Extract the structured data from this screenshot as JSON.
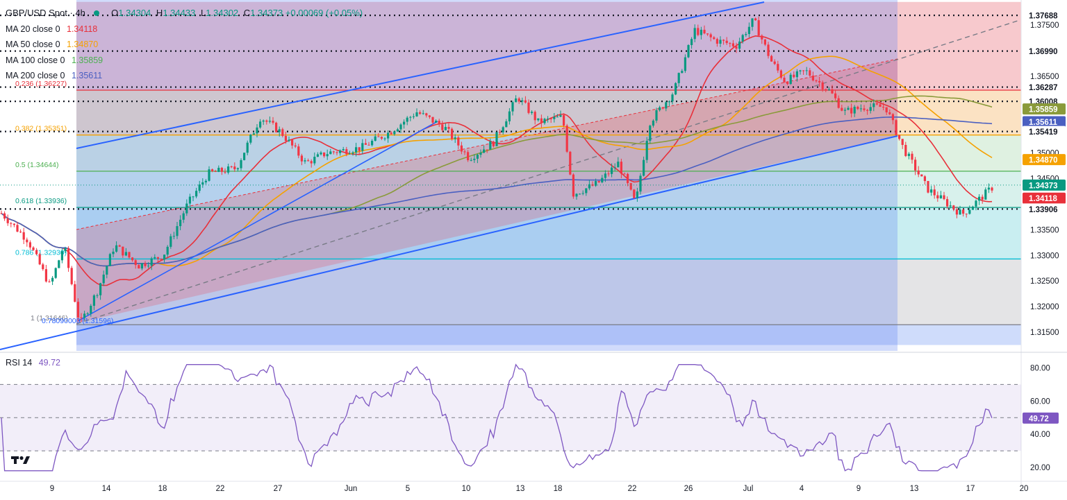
{
  "header": {
    "symbol": "GBP/USD Spot",
    "timeframe": "4h",
    "open_label": "O",
    "open": "1.34304",
    "high_label": "H",
    "high": "1.34433",
    "low_label": "L",
    "low": "1.34302",
    "close_label": "C",
    "close": "1.34373",
    "change": "+0.00069 (+0.05%)"
  },
  "indicators": [
    {
      "label": "MA 20 close 0",
      "value": "1.34118",
      "color": "#e8303a"
    },
    {
      "label": "MA 50 close 0",
      "value": "1.34870",
      "color": "#f5a100"
    },
    {
      "label": "MA 100 close 0",
      "value": "1.35859",
      "color": "#8a9a3a"
    },
    {
      "label": "MA 200 close 0",
      "value": "1.35611",
      "color": "#4a5fc1"
    }
  ],
  "rsi": {
    "label": "RSI 14",
    "value": "49.72",
    "color": "#7e57c2",
    "levels": [
      70,
      50,
      30
    ]
  },
  "fib_levels": [
    {
      "ratio": "0.236",
      "label": "0.236 (1.36227)",
      "price": 1.36227,
      "color": "#e8303a"
    },
    {
      "ratio": "0.382",
      "label": "0.382 (1.35351)",
      "price": 1.35351,
      "color": "#f5a100"
    },
    {
      "ratio": "0.5",
      "label": "0.5 (1.34644)",
      "price": 1.34644,
      "color": "#4caf50"
    },
    {
      "ratio": "0.618",
      "label": "0.618 (1.33936)",
      "price": 1.33936,
      "color": "#089981"
    },
    {
      "ratio": "0.786",
      "label": "0.786 (1.32930)",
      "price": 1.3293,
      "color": "#00bcd4"
    },
    {
      "ratio": "1",
      "label": "1 (1.31646)",
      "price": 1.31646,
      "color": "#787b86"
    }
  ],
  "annotation_text": "0.78090000 (1.31596)",
  "chart_data": {
    "type": "candlestick",
    "instrument": "GBP/USD Spot",
    "timeframe": "4h",
    "y_range": [
      1.3125,
      1.3795
    ],
    "price_ticks": [
      "1.37500",
      "1.37000",
      "1.36500",
      "1.36000",
      "1.35500",
      "1.35000",
      "1.34500",
      "1.34000",
      "1.33500",
      "1.33000",
      "1.32500",
      "1.32000",
      "1.31500"
    ],
    "x_ticks": [
      "9",
      "14",
      "18",
      "22",
      "27",
      "Jun",
      "5",
      "10",
      "13",
      "18",
      "22",
      "26",
      "Jul",
      "4",
      "9",
      "13",
      "17",
      "20"
    ],
    "horizontal_levels": [
      {
        "label": "1.37688",
        "price": 1.37688
      },
      {
        "label": "1.36990",
        "price": 1.3699
      },
      {
        "label": "1.36287",
        "price": 1.36287
      },
      {
        "label": "1.36008",
        "price": 1.36008
      },
      {
        "label": "1.35419",
        "price": 1.35419
      },
      {
        "label": "1.33906",
        "price": 1.33906
      }
    ],
    "price_badges": [
      {
        "label": "1.37688",
        "price": 1.37688,
        "bg": "#ffffff",
        "fg": "#131722"
      },
      {
        "label": "1.36990",
        "price": 1.3699,
        "bg": "#ffffff",
        "fg": "#131722"
      },
      {
        "label": "1.36287",
        "price": 1.36287,
        "bg": "#ffffff",
        "fg": "#131722"
      },
      {
        "label": "1.36008",
        "price": 1.36008,
        "bg": "#ffffff",
        "fg": "#131722"
      },
      {
        "label": "1.35859",
        "price": 1.35859,
        "bg": "#8a9a3a",
        "fg": "#ffffff"
      },
      {
        "label": "1.35611",
        "price": 1.35611,
        "bg": "#4a5fc1",
        "fg": "#ffffff"
      },
      {
        "label": "1.35419",
        "price": 1.35419,
        "bg": "#ffffff",
        "fg": "#131722"
      },
      {
        "label": "1.34870",
        "price": 1.3487,
        "bg": "#f5a100",
        "fg": "#ffffff"
      },
      {
        "label": "1.34373",
        "price": 1.34373,
        "bg": "#089981",
        "fg": "#ffffff"
      },
      {
        "label": "1.34118",
        "price": 1.34118,
        "bg": "#e8303a",
        "fg": "#ffffff"
      },
      {
        "label": "1.33906",
        "price": 1.33906,
        "bg": "#ffffff",
        "fg": "#131722"
      }
    ],
    "rsi_ticks": [
      "80.00",
      "60.00",
      "40.00",
      "20.00"
    ],
    "rsi_range": [
      15,
      85
    ],
    "last_close": 1.34373,
    "ma_last": {
      "ma20": 1.34118,
      "ma50": 1.3487,
      "ma100": 1.35859,
      "ma200": 1.35611
    },
    "colors": {
      "up": "#089981",
      "down": "#f23645"
    }
  }
}
